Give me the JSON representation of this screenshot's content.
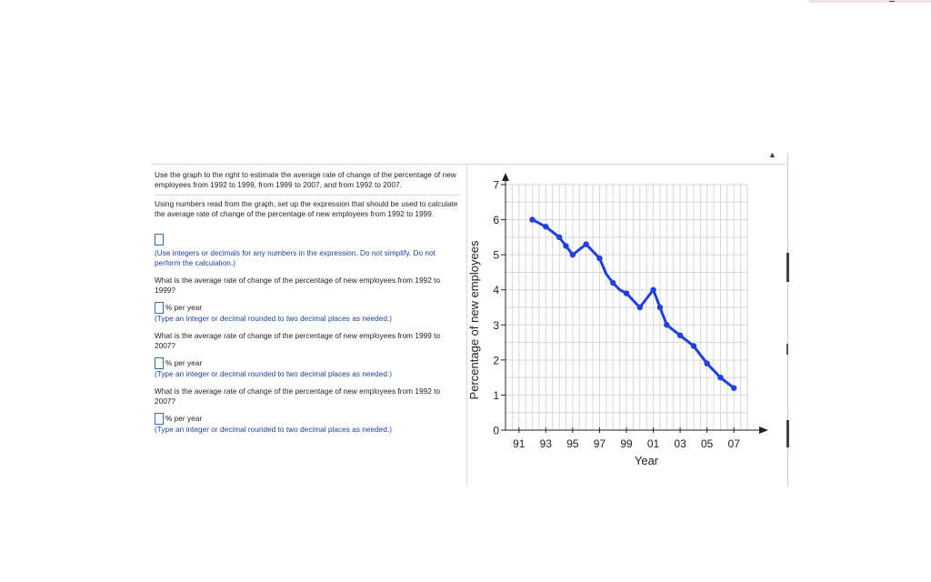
{
  "problem": {
    "intro": "Use the graph to the right to estimate the average rate of change of the percentage of new employees from 1992 to 1999, from 1999 to 2007, and from 1992 to 2007.",
    "setup_prompt": "Using numbers read from the graph, set up the expression that should be used to calculate the average rate of change of the percentage of new employees from 1992 to 1999.",
    "setup_value": "",
    "setup_hint": "(Use integers or decimals for any numbers in the expression. Do not simplify. Do not perform the calculation.)",
    "questions": [
      {
        "prompt": "What is the average rate of change of the percentage of new employees from 1992 to 1999?",
        "answer": "",
        "unit": "% per year",
        "hint": "(Type an integer or decimal rounded to two decimal places as needed.)"
      },
      {
        "prompt": "What is the average rate of change of the percentage of new employees from 1999 to 2007?",
        "answer": "",
        "unit": "% per year",
        "hint": "(Type an integer or decimal rounded to two decimal places as needed.)"
      },
      {
        "prompt": "What is the average rate of change of the percentage of new employees from 1992 to 2007?",
        "answer": "",
        "unit": "% per year",
        "hint": "(Type an integer or decimal rounded to two decimal places as needed.)"
      }
    ]
  },
  "colors": {
    "line": "#1f3fe0",
    "grid": "#d6d6d6",
    "input_border": "#2f6fb4",
    "hint": "#1b3f9c"
  },
  "icons": [
    "scroll-up-arrow-icon"
  ],
  "chart_data": {
    "type": "line",
    "xlabel": "Year",
    "ylabel": "Percentage of new employees",
    "xlim": [
      1990,
      2008
    ],
    "ylim": [
      0,
      7
    ],
    "x_ticks": [
      1991,
      1993,
      1995,
      1997,
      1999,
      2001,
      2003,
      2005,
      2007
    ],
    "x_tick_labels": [
      "91",
      "93",
      "95",
      "97",
      "99",
      "01",
      "03",
      "05",
      "07"
    ],
    "y_ticks": [
      0,
      1,
      2,
      3,
      4,
      5,
      6,
      7
    ],
    "y_tick_labels": [
      "0",
      "1",
      "2",
      "3",
      "4",
      "5",
      "6",
      "7"
    ],
    "grid": true,
    "series": [
      {
        "x": [
          1992,
          1992.5,
          1993,
          1993.5,
          1994,
          1994.5,
          1995,
          1995.5,
          1996,
          1996.5,
          1997,
          1997.5,
          1998,
          1998.5,
          1999,
          1999.5,
          2000,
          2000.5,
          2001,
          2001.5,
          2002,
          2002.5,
          2003,
          2003.5,
          2004,
          2004.5,
          2005,
          2005.5,
          2006,
          2006.5,
          2007
        ],
        "y": [
          6.0,
          5.9,
          5.8,
          5.65,
          5.5,
          5.25,
          5.0,
          5.15,
          5.3,
          5.1,
          4.9,
          4.45,
          4.2,
          4.0,
          3.9,
          3.7,
          3.5,
          3.75,
          4.0,
          3.5,
          3.0,
          2.85,
          2.7,
          2.55,
          2.4,
          2.15,
          1.9,
          1.7,
          1.5,
          1.35,
          1.2
        ]
      }
    ]
  }
}
